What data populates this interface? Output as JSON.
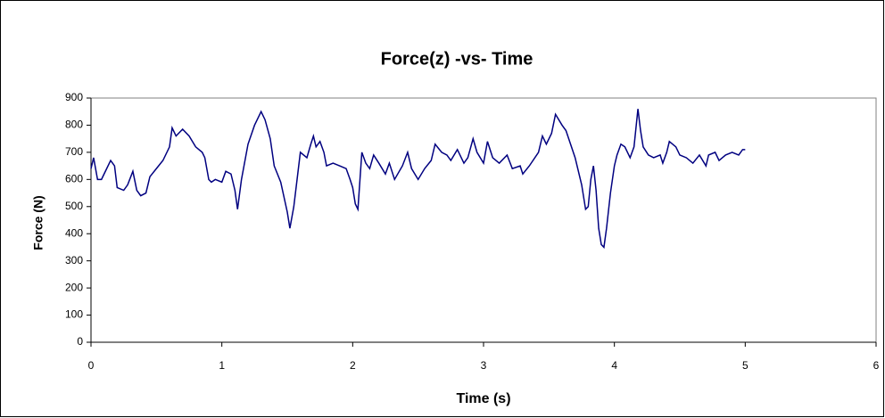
{
  "chart_data": {
    "type": "line",
    "title": "Force(z) -vs- Time",
    "x_label": "Time (s)",
    "y_label": "Force (N)",
    "x": [
      0,
      0.02,
      0.05,
      0.08,
      0.1,
      0.15,
      0.18,
      0.2,
      0.25,
      0.28,
      0.32,
      0.35,
      0.38,
      0.42,
      0.45,
      0.5,
      0.55,
      0.6,
      0.62,
      0.65,
      0.7,
      0.75,
      0.8,
      0.85,
      0.87,
      0.9,
      0.92,
      0.95,
      1.0,
      1.03,
      1.07,
      1.1,
      1.12,
      1.15,
      1.2,
      1.25,
      1.3,
      1.33,
      1.37,
      1.4,
      1.45,
      1.5,
      1.52,
      1.55,
      1.58,
      1.6,
      1.65,
      1.68,
      1.7,
      1.72,
      1.75,
      1.78,
      1.8,
      1.85,
      1.9,
      1.95,
      1.98,
      2.0,
      2.02,
      2.04,
      2.07,
      2.1,
      2.13,
      2.16,
      2.2,
      2.25,
      2.28,
      2.32,
      2.38,
      2.42,
      2.45,
      2.5,
      2.55,
      2.6,
      2.63,
      2.68,
      2.72,
      2.75,
      2.8,
      2.85,
      2.88,
      2.92,
      2.95,
      3.0,
      3.03,
      3.07,
      3.12,
      3.18,
      3.22,
      3.28,
      3.3,
      3.35,
      3.42,
      3.45,
      3.48,
      3.52,
      3.55,
      3.6,
      3.63,
      3.7,
      3.75,
      3.78,
      3.8,
      3.82,
      3.84,
      3.86,
      3.88,
      3.9,
      3.92,
      3.94,
      3.97,
      4.0,
      4.02,
      4.05,
      4.08,
      4.12,
      4.15,
      4.18,
      4.2,
      4.22,
      4.26,
      4.3,
      4.35,
      4.37,
      4.4,
      4.42,
      4.47,
      4.5,
      4.55,
      4.6,
      4.65,
      4.7,
      4.72,
      4.77,
      4.8,
      4.85,
      4.9,
      4.95,
      4.98,
      5.0
    ],
    "values": [
      640,
      680,
      600,
      600,
      620,
      670,
      650,
      570,
      560,
      580,
      630,
      560,
      540,
      550,
      610,
      640,
      670,
      720,
      790,
      760,
      785,
      760,
      720,
      700,
      680,
      600,
      590,
      600,
      590,
      630,
      620,
      560,
      490,
      600,
      730,
      800,
      850,
      820,
      750,
      650,
      590,
      480,
      420,
      500,
      620,
      700,
      680,
      730,
      760,
      720,
      740,
      700,
      650,
      660,
      650,
      640,
      600,
      570,
      510,
      490,
      700,
      660,
      640,
      690,
      660,
      620,
      660,
      600,
      650,
      700,
      640,
      600,
      640,
      670,
      730,
      700,
      690,
      670,
      710,
      660,
      680,
      750,
      700,
      660,
      740,
      680,
      660,
      690,
      640,
      650,
      620,
      650,
      700,
      760,
      730,
      770,
      840,
      800,
      780,
      680,
      580,
      490,
      500,
      600,
      650,
      560,
      420,
      360,
      350,
      420,
      550,
      650,
      690,
      730,
      720,
      680,
      720,
      860,
      780,
      720,
      690,
      680,
      690,
      660,
      700,
      740,
      720,
      690,
      680,
      660,
      690,
      650,
      690,
      700,
      670,
      690,
      700,
      690,
      710,
      710
    ],
    "color": "#000080",
    "xlim": [
      0,
      6
    ],
    "xticks": [
      0,
      1,
      2,
      3,
      4,
      5,
      6
    ],
    "ylim": [
      0,
      900
    ],
    "yticks": [
      0,
      100,
      200,
      300,
      400,
      500,
      600,
      700,
      800,
      900
    ]
  }
}
